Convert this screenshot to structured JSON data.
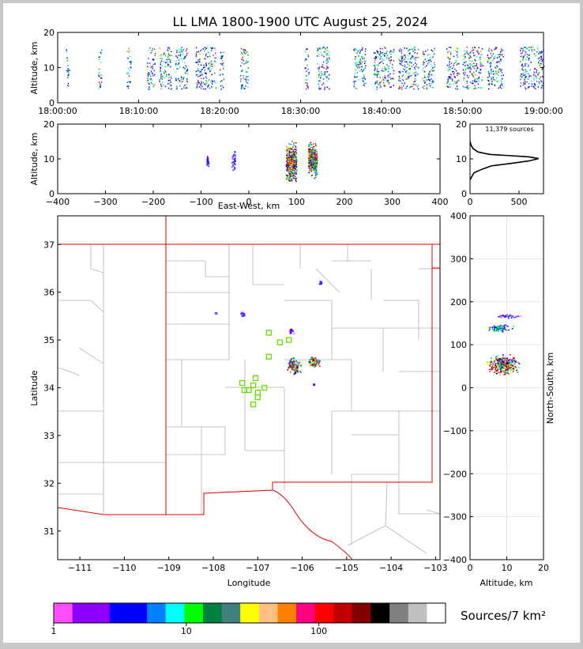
{
  "chart_data": [
    {
      "type": "scatter",
      "panel": "altitude-time",
      "title": "LL LMA 1800-1900 UTC August 25, 2024",
      "xlabel": "",
      "ylabel": "Altitude, km",
      "xlim": [
        "18:00:00",
        "19:00:00"
      ],
      "ylim": [
        0,
        20
      ],
      "x_ticks": [
        "18:00:00",
        "18:10:00",
        "18:20:00",
        "18:30:00",
        "18:40:00",
        "18:50:00",
        "19:00:00"
      ],
      "y_ticks": [
        "0",
        "10",
        "20"
      ],
      "activity_clusters_min": [
        [
          1.0,
          1.4
        ],
        [
          5.0,
          5.4
        ],
        [
          8.5,
          9.0
        ],
        [
          11.0,
          12.0
        ],
        [
          12.5,
          14.0
        ],
        [
          14.5,
          16.0
        ],
        [
          17.0,
          19.5
        ],
        [
          20.0,
          20.5
        ],
        [
          22.5,
          23.5
        ],
        [
          30.5,
          31.0
        ],
        [
          32.0,
          33.5
        ],
        [
          36.5,
          38.0
        ],
        [
          39.0,
          41.5
        ],
        [
          42.0,
          44.5
        ],
        [
          45.0,
          46.5
        ],
        [
          48.0,
          49.5
        ],
        [
          50.0,
          52.5
        ],
        [
          53.0,
          55.0
        ],
        [
          57.0,
          60.0
        ]
      ],
      "altitude_band_km": [
        4,
        16
      ]
    },
    {
      "type": "scatter",
      "panel": "altitude-eastwest",
      "xlabel": "East-West, km",
      "ylabel": "Altitude, km",
      "xlim": [
        -400,
        400
      ],
      "ylim": [
        0,
        20
      ],
      "x_ticks": [
        "−400",
        "−300",
        "−200",
        "−100",
        "0",
        "100",
        "200",
        "300",
        "400"
      ],
      "y_ticks": [
        "0",
        "10",
        "20"
      ],
      "clusters": [
        {
          "x_center": -87,
          "z_center": 9.5,
          "x_width": 4,
          "z_half": 2,
          "density": "low"
        },
        {
          "x_center": -33,
          "z_center": 9.5,
          "x_width": 8,
          "z_half": 4,
          "density": "low"
        },
        {
          "x_center": 88,
          "z_center": 9,
          "x_width": 22,
          "z_half": 7,
          "density": "high"
        },
        {
          "x_center": 133,
          "z_center": 10,
          "x_width": 18,
          "z_half": 6,
          "density": "high"
        }
      ]
    },
    {
      "type": "line",
      "panel": "altitude-histogram",
      "annotation": "11,379 sources",
      "xlim": [
        0,
        750
      ],
      "ylim": [
        0,
        20
      ],
      "x_ticks": [
        "0",
        "500"
      ],
      "y_ticks": [
        "0",
        "10",
        "20"
      ],
      "profile": [
        [
          0,
          4
        ],
        [
          40,
          6
        ],
        [
          120,
          7
        ],
        [
          220,
          8
        ],
        [
          420,
          8.7
        ],
        [
          600,
          9.4
        ],
        [
          700,
          10.1
        ],
        [
          600,
          10.6
        ],
        [
          420,
          10.9
        ],
        [
          200,
          11.3
        ],
        [
          80,
          12
        ],
        [
          30,
          13
        ],
        [
          10,
          14
        ],
        [
          0,
          15
        ]
      ]
    },
    {
      "type": "scatter",
      "panel": "map",
      "xlabel": "Longitude",
      "ylabel": "Latitude",
      "xlim": [
        -111.5,
        -102.9
      ],
      "ylim": [
        30.4,
        37.6
      ],
      "x_ticks": [
        "−111",
        "−110",
        "−109",
        "−108",
        "−107",
        "−106",
        "−105",
        "−104",
        "−103"
      ],
      "y_ticks": [
        "31",
        "32",
        "33",
        "34",
        "35",
        "36",
        "37"
      ],
      "stations": [
        [
          -107.35,
          34.1
        ],
        [
          -107.05,
          34.2
        ],
        [
          -107.2,
          33.95
        ],
        [
          -107.0,
          33.9
        ],
        [
          -106.85,
          34.0
        ],
        [
          -107.1,
          34.05
        ],
        [
          -107.3,
          33.95
        ],
        [
          -107.1,
          33.65
        ],
        [
          -107.0,
          33.8
        ],
        [
          -106.75,
          34.65
        ],
        [
          -106.5,
          34.95
        ],
        [
          -106.3,
          35.0
        ],
        [
          -106.75,
          35.15
        ]
      ],
      "source_clusters": [
        {
          "lon": -106.2,
          "lat": 34.45,
          "spread_lon": 0.18,
          "spread_lat": 0.25
        },
        {
          "lon": -105.75,
          "lat": 34.55,
          "spread_lon": 0.15,
          "spread_lat": 0.12
        },
        {
          "lon": -106.25,
          "lat": 35.2,
          "spread_lon": 0.08,
          "spread_lat": 0.1
        },
        {
          "lon": -107.35,
          "lat": 35.55,
          "spread_lon": 0.07,
          "spread_lat": 0.05
        },
        {
          "lon": -107.95,
          "lat": 35.57,
          "spread_lon": 0.03,
          "spread_lat": 0.02
        },
        {
          "lon": -105.75,
          "lat": 34.08,
          "spread_lon": 0.03,
          "spread_lat": 0.02
        },
        {
          "lon": -105.6,
          "lat": 36.2,
          "spread_lon": 0.04,
          "spread_lat": 0.06
        }
      ]
    },
    {
      "type": "scatter",
      "panel": "northsouth-altitude",
      "xlabel": "Altitude, km",
      "ylabel": "North-South, km",
      "xlim": [
        0,
        20
      ],
      "ylim": [
        -400,
        400
      ],
      "x_ticks": [
        "0",
        "10",
        "20"
      ],
      "y_ticks": [
        "−400",
        "−300",
        "−200",
        "−100",
        "0",
        "100",
        "200",
        "300",
        "400"
      ],
      "clusters": [
        {
          "y_center": 55,
          "z_center": 9,
          "y_half": 28,
          "z_half": 5,
          "density": "high"
        },
        {
          "y_center": 140,
          "z_center": 8,
          "y_half": 12,
          "z_half": 4,
          "density": "medium"
        },
        {
          "y_center": 168,
          "z_center": 10,
          "y_half": 6,
          "z_half": 5,
          "density": "low"
        }
      ]
    }
  ],
  "colorbar": {
    "label": "Sources/7 km²",
    "tick_labels": [
      "1",
      "10",
      "100"
    ],
    "colors": [
      "#ff4dff",
      "#8b00ff",
      "#8b00ff",
      "#0000ff",
      "#0000ff",
      "#0080ff",
      "#00ffff",
      "#00ff00",
      "#008040",
      "#408080",
      "#ffff00",
      "#ffc080",
      "#ff8000",
      "#ff0080",
      "#ff0000",
      "#c00000",
      "#800000",
      "#000000",
      "#808080",
      "#c0c0c0",
      "#ffffff"
    ]
  }
}
